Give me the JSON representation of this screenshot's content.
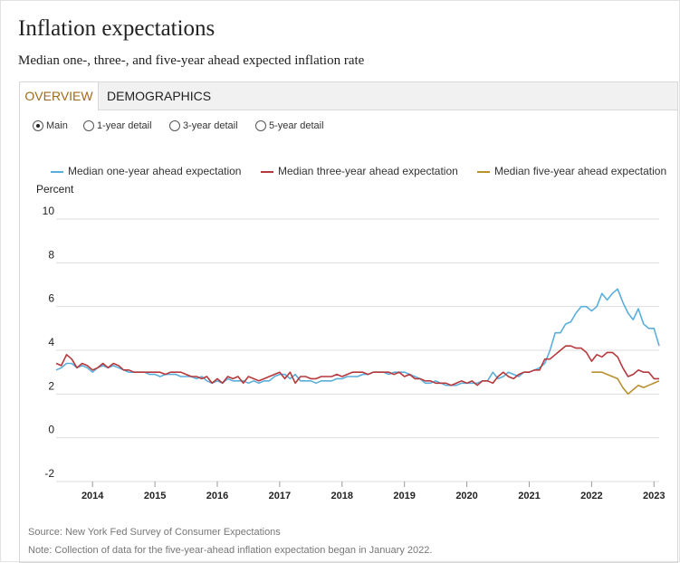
{
  "header": {
    "title": "Inflation expectations",
    "subtitle": "Median one-, three-, and five-year ahead expected inflation rate"
  },
  "tabs": [
    {
      "label": "OVERVIEW",
      "active": true
    },
    {
      "label": "DEMOGRAPHICS",
      "active": false
    }
  ],
  "radios": [
    {
      "label": "Main",
      "selected": true
    },
    {
      "label": "1-year detail",
      "selected": false
    },
    {
      "label": "3-year detail",
      "selected": false
    },
    {
      "label": "5-year detail",
      "selected": false
    }
  ],
  "colors": {
    "accent": "#a06a1b",
    "one_year": "#5aaedc",
    "three_year": "#b5383c",
    "five_year": "#b8902e",
    "gridline": "#dddddd"
  },
  "footer": {
    "source": "Source: New York Fed Survey of Consumer Expectations",
    "note": "Note: Collection of data for the five-year-ahead inflation expectation began in January 2022."
  },
  "chart_data": {
    "type": "line",
    "ylabel": "Percent",
    "ylim": [
      -2,
      10
    ],
    "yticks": [
      "10",
      "8",
      "6",
      "4",
      "2",
      "0",
      "-2"
    ],
    "xlim": [
      "2013-06",
      "2023-02"
    ],
    "xticks": [
      "2014",
      "2015",
      "2016",
      "2017",
      "2018",
      "2019",
      "2020",
      "2021",
      "2022",
      "2023"
    ],
    "grid": true,
    "legend_position": "top",
    "series": [
      {
        "name": "Median one-year ahead expectation",
        "color": "#5aaedc",
        "points": [
          [
            "2013-06",
            3.1
          ],
          [
            "2013-07",
            3.2
          ],
          [
            "2013-08",
            3.4
          ],
          [
            "2013-09",
            3.4
          ],
          [
            "2013-10",
            3.2
          ],
          [
            "2013-11",
            3.3
          ],
          [
            "2013-12",
            3.2
          ],
          [
            "2014-01",
            3.0
          ],
          [
            "2014-02",
            3.2
          ],
          [
            "2014-03",
            3.3
          ],
          [
            "2014-04",
            3.2
          ],
          [
            "2014-05",
            3.3
          ],
          [
            "2014-06",
            3.2
          ],
          [
            "2014-07",
            3.1
          ],
          [
            "2014-08",
            3.0
          ],
          [
            "2014-09",
            3.0
          ],
          [
            "2014-10",
            3.0
          ],
          [
            "2014-11",
            3.0
          ],
          [
            "2014-12",
            2.9
          ],
          [
            "2015-01",
            2.9
          ],
          [
            "2015-02",
            2.8
          ],
          [
            "2015-03",
            2.9
          ],
          [
            "2015-04",
            2.9
          ],
          [
            "2015-05",
            2.9
          ],
          [
            "2015-06",
            2.8
          ],
          [
            "2015-07",
            2.8
          ],
          [
            "2015-08",
            2.8
          ],
          [
            "2015-09",
            2.7
          ],
          [
            "2015-10",
            2.8
          ],
          [
            "2015-11",
            2.6
          ],
          [
            "2015-12",
            2.5
          ],
          [
            "2016-01",
            2.6
          ],
          [
            "2016-02",
            2.5
          ],
          [
            "2016-03",
            2.7
          ],
          [
            "2016-04",
            2.6
          ],
          [
            "2016-05",
            2.6
          ],
          [
            "2016-06",
            2.6
          ],
          [
            "2016-07",
            2.5
          ],
          [
            "2016-08",
            2.6
          ],
          [
            "2016-09",
            2.5
          ],
          [
            "2016-10",
            2.6
          ],
          [
            "2016-11",
            2.6
          ],
          [
            "2016-12",
            2.8
          ],
          [
            "2017-01",
            2.9
          ],
          [
            "2017-02",
            2.9
          ],
          [
            "2017-03",
            2.7
          ],
          [
            "2017-04",
            2.9
          ],
          [
            "2017-05",
            2.6
          ],
          [
            "2017-06",
            2.6
          ],
          [
            "2017-07",
            2.6
          ],
          [
            "2017-08",
            2.5
          ],
          [
            "2017-09",
            2.6
          ],
          [
            "2017-10",
            2.6
          ],
          [
            "2017-11",
            2.6
          ],
          [
            "2017-12",
            2.7
          ],
          [
            "2018-01",
            2.7
          ],
          [
            "2018-02",
            2.8
          ],
          [
            "2018-03",
            2.8
          ],
          [
            "2018-04",
            2.8
          ],
          [
            "2018-05",
            2.9
          ],
          [
            "2018-06",
            2.9
          ],
          [
            "2018-07",
            3.0
          ],
          [
            "2018-08",
            3.0
          ],
          [
            "2018-09",
            3.0
          ],
          [
            "2018-10",
            2.9
          ],
          [
            "2018-11",
            3.0
          ],
          [
            "2018-12",
            3.0
          ],
          [
            "2019-01",
            3.0
          ],
          [
            "2019-02",
            2.9
          ],
          [
            "2019-03",
            2.8
          ],
          [
            "2019-04",
            2.7
          ],
          [
            "2019-05",
            2.5
          ],
          [
            "2019-06",
            2.5
          ],
          [
            "2019-07",
            2.6
          ],
          [
            "2019-08",
            2.5
          ],
          [
            "2019-09",
            2.4
          ],
          [
            "2019-10",
            2.4
          ],
          [
            "2019-11",
            2.4
          ],
          [
            "2019-12",
            2.5
          ],
          [
            "2020-01",
            2.5
          ],
          [
            "2020-02",
            2.5
          ],
          [
            "2020-03",
            2.5
          ],
          [
            "2020-04",
            2.6
          ],
          [
            "2020-05",
            2.6
          ],
          [
            "2020-06",
            3.0
          ],
          [
            "2020-07",
            2.7
          ],
          [
            "2020-08",
            2.8
          ],
          [
            "2020-09",
            3.0
          ],
          [
            "2020-10",
            2.9
          ],
          [
            "2020-11",
            2.8
          ],
          [
            "2020-12",
            3.0
          ],
          [
            "2021-01",
            3.0
          ],
          [
            "2021-02",
            3.1
          ],
          [
            "2021-03",
            3.2
          ],
          [
            "2021-04",
            3.4
          ],
          [
            "2021-05",
            4.0
          ],
          [
            "2021-06",
            4.8
          ],
          [
            "2021-07",
            4.8
          ],
          [
            "2021-08",
            5.2
          ],
          [
            "2021-09",
            5.3
          ],
          [
            "2021-10",
            5.7
          ],
          [
            "2021-11",
            6.0
          ],
          [
            "2021-12",
            6.0
          ],
          [
            "2022-01",
            5.8
          ],
          [
            "2022-02",
            6.0
          ],
          [
            "2022-03",
            6.6
          ],
          [
            "2022-04",
            6.3
          ],
          [
            "2022-05",
            6.6
          ],
          [
            "2022-06",
            6.8
          ],
          [
            "2022-07",
            6.2
          ],
          [
            "2022-08",
            5.7
          ],
          [
            "2022-09",
            5.4
          ],
          [
            "2022-10",
            5.9
          ],
          [
            "2022-11",
            5.2
          ],
          [
            "2022-12",
            5.0
          ],
          [
            "2023-01",
            5.0
          ],
          [
            "2023-02",
            4.2
          ]
        ]
      },
      {
        "name": "Median three-year ahead expectation",
        "color": "#b5383c",
        "points": [
          [
            "2013-06",
            3.4
          ],
          [
            "2013-07",
            3.3
          ],
          [
            "2013-08",
            3.8
          ],
          [
            "2013-09",
            3.6
          ],
          [
            "2013-10",
            3.2
          ],
          [
            "2013-11",
            3.4
          ],
          [
            "2013-12",
            3.3
          ],
          [
            "2014-01",
            3.1
          ],
          [
            "2014-02",
            3.2
          ],
          [
            "2014-03",
            3.4
          ],
          [
            "2014-04",
            3.2
          ],
          [
            "2014-05",
            3.4
          ],
          [
            "2014-06",
            3.3
          ],
          [
            "2014-07",
            3.1
          ],
          [
            "2014-08",
            3.1
          ],
          [
            "2014-09",
            3.0
          ],
          [
            "2014-10",
            3.0
          ],
          [
            "2014-11",
            3.0
          ],
          [
            "2014-12",
            3.0
          ],
          [
            "2015-01",
            3.0
          ],
          [
            "2015-02",
            3.0
          ],
          [
            "2015-03",
            2.9
          ],
          [
            "2015-04",
            3.0
          ],
          [
            "2015-05",
            3.0
          ],
          [
            "2015-06",
            3.0
          ],
          [
            "2015-07",
            2.9
          ],
          [
            "2015-08",
            2.8
          ],
          [
            "2015-09",
            2.8
          ],
          [
            "2015-10",
            2.7
          ],
          [
            "2015-11",
            2.8
          ],
          [
            "2015-12",
            2.5
          ],
          [
            "2016-01",
            2.7
          ],
          [
            "2016-02",
            2.5
          ],
          [
            "2016-03",
            2.8
          ],
          [
            "2016-04",
            2.7
          ],
          [
            "2016-05",
            2.8
          ],
          [
            "2016-06",
            2.5
          ],
          [
            "2016-07",
            2.8
          ],
          [
            "2016-08",
            2.7
          ],
          [
            "2016-09",
            2.6
          ],
          [
            "2016-10",
            2.7
          ],
          [
            "2016-11",
            2.8
          ],
          [
            "2016-12",
            2.9
          ],
          [
            "2017-01",
            3.0
          ],
          [
            "2017-02",
            2.7
          ],
          [
            "2017-03",
            3.0
          ],
          [
            "2017-04",
            2.5
          ],
          [
            "2017-05",
            2.8
          ],
          [
            "2017-06",
            2.8
          ],
          [
            "2017-07",
            2.7
          ],
          [
            "2017-08",
            2.7
          ],
          [
            "2017-09",
            2.8
          ],
          [
            "2017-10",
            2.8
          ],
          [
            "2017-11",
            2.8
          ],
          [
            "2017-12",
            2.9
          ],
          [
            "2018-01",
            2.8
          ],
          [
            "2018-02",
            2.9
          ],
          [
            "2018-03",
            3.0
          ],
          [
            "2018-04",
            3.0
          ],
          [
            "2018-05",
            3.0
          ],
          [
            "2018-06",
            2.9
          ],
          [
            "2018-07",
            3.0
          ],
          [
            "2018-08",
            3.0
          ],
          [
            "2018-09",
            3.0
          ],
          [
            "2018-10",
            3.0
          ],
          [
            "2018-11",
            2.9
          ],
          [
            "2018-12",
            3.0
          ],
          [
            "2019-01",
            2.8
          ],
          [
            "2019-02",
            2.9
          ],
          [
            "2019-03",
            2.7
          ],
          [
            "2019-04",
            2.7
          ],
          [
            "2019-05",
            2.6
          ],
          [
            "2019-06",
            2.6
          ],
          [
            "2019-07",
            2.5
          ],
          [
            "2019-08",
            2.5
          ],
          [
            "2019-09",
            2.5
          ],
          [
            "2019-10",
            2.4
          ],
          [
            "2019-11",
            2.5
          ],
          [
            "2019-12",
            2.6
          ],
          [
            "2020-01",
            2.5
          ],
          [
            "2020-02",
            2.6
          ],
          [
            "2020-03",
            2.4
          ],
          [
            "2020-04",
            2.6
          ],
          [
            "2020-05",
            2.6
          ],
          [
            "2020-06",
            2.5
          ],
          [
            "2020-07",
            2.8
          ],
          [
            "2020-08",
            3.0
          ],
          [
            "2020-09",
            2.8
          ],
          [
            "2020-10",
            2.7
          ],
          [
            "2020-11",
            2.9
          ],
          [
            "2020-12",
            3.0
          ],
          [
            "2021-01",
            3.0
          ],
          [
            "2021-02",
            3.1
          ],
          [
            "2021-03",
            3.1
          ],
          [
            "2021-04",
            3.6
          ],
          [
            "2021-05",
            3.6
          ],
          [
            "2021-06",
            3.8
          ],
          [
            "2021-07",
            4.0
          ],
          [
            "2021-08",
            4.2
          ],
          [
            "2021-09",
            4.2
          ],
          [
            "2021-10",
            4.1
          ],
          [
            "2021-11",
            4.1
          ],
          [
            "2021-12",
            3.9
          ],
          [
            "2022-01",
            3.5
          ],
          [
            "2022-02",
            3.8
          ],
          [
            "2022-03",
            3.7
          ],
          [
            "2022-04",
            3.9
          ],
          [
            "2022-05",
            3.9
          ],
          [
            "2022-06",
            3.7
          ],
          [
            "2022-07",
            3.2
          ],
          [
            "2022-08",
            2.8
          ],
          [
            "2022-09",
            2.9
          ],
          [
            "2022-10",
            3.1
          ],
          [
            "2022-11",
            3.0
          ],
          [
            "2022-12",
            3.0
          ],
          [
            "2023-01",
            2.7
          ],
          [
            "2023-02",
            2.7
          ]
        ]
      },
      {
        "name": "Median five-year ahead expectation",
        "color": "#b8902e",
        "points": [
          [
            "2022-01",
            3.0
          ],
          [
            "2022-02",
            3.0
          ],
          [
            "2022-03",
            3.0
          ],
          [
            "2022-04",
            2.9
          ],
          [
            "2022-05",
            2.8
          ],
          [
            "2022-06",
            2.7
          ],
          [
            "2022-07",
            2.3
          ],
          [
            "2022-08",
            2.0
          ],
          [
            "2022-09",
            2.2
          ],
          [
            "2022-10",
            2.4
          ],
          [
            "2022-11",
            2.3
          ],
          [
            "2022-12",
            2.4
          ],
          [
            "2023-01",
            2.5
          ],
          [
            "2023-02",
            2.6
          ]
        ]
      }
    ]
  }
}
